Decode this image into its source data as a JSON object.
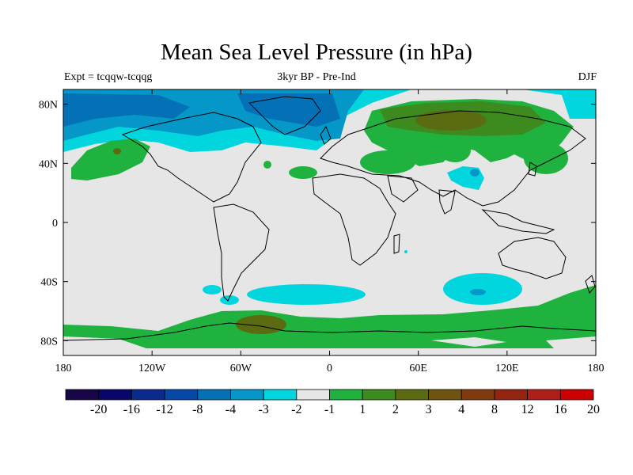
{
  "title": "Mean Sea Level Pressure (in hPa)",
  "expt_label": "Expt = tcqqw-tcqqg",
  "center_label": "3kyr BP - Pre-Ind",
  "season_label": "DJF",
  "lat_labels": [
    "80N",
    "40N",
    "0",
    "40S",
    "80S"
  ],
  "lon_labels": [
    "180",
    "120W",
    "60W",
    "0",
    "60E",
    "120E",
    "180"
  ],
  "colorbar": {
    "colors": [
      "#180648",
      "#07066b",
      "#0a2a8e",
      "#0648a8",
      "#0471b7",
      "#0597c7",
      "#01d6de",
      "#e6e6e6",
      "#20b23e",
      "#3d8a1f",
      "#5a6b11",
      "#6e5410",
      "#823b10",
      "#942310",
      "#ad1f18",
      "#cc0000"
    ],
    "labels": [
      "-20",
      "-16",
      "-12",
      "-8",
      "-4",
      "-3",
      "-2",
      "-1",
      "1",
      "2",
      "3",
      "4",
      "8",
      "12",
      "16",
      "20"
    ]
  },
  "fill_colors": {
    "neutral": "#e6e6e6",
    "neg1": "#01d6de",
    "neg2": "#0597c7",
    "neg3": "#0471b7",
    "pos1": "#20b23e",
    "pos2": "#3d8a1f",
    "pos3": "#5a6b11",
    "pos4": "#6e5410"
  }
}
